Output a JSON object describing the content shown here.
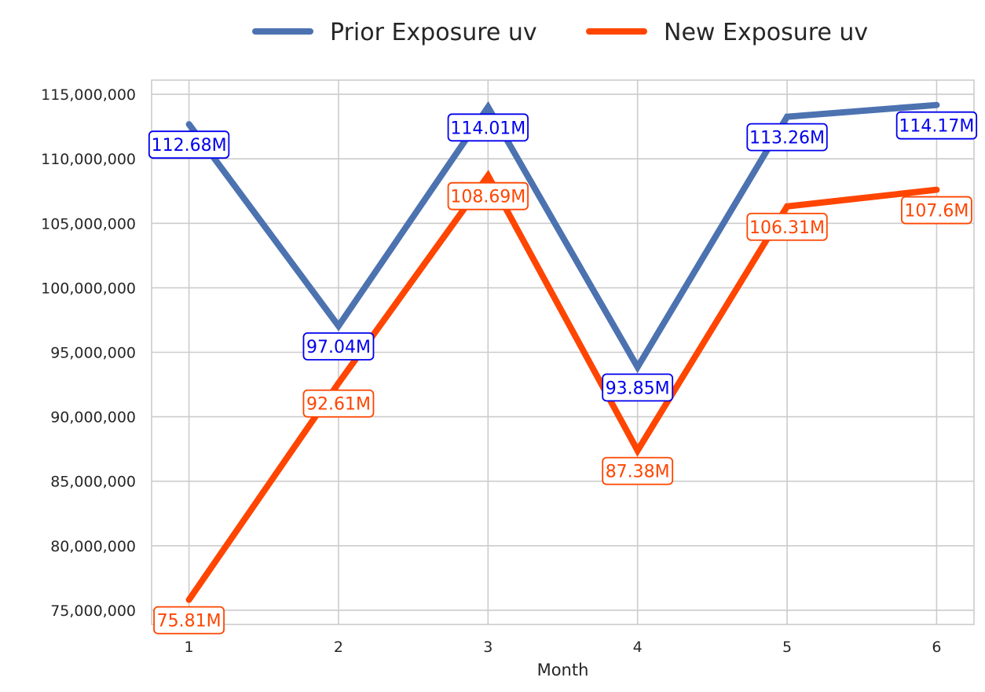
{
  "chart_data": {
    "type": "line",
    "title": "",
    "xlabel": "Month",
    "ylabel": "",
    "x": [
      1,
      2,
      3,
      4,
      5,
      6
    ],
    "xlim": [
      0.75,
      6.25
    ],
    "ylim": [
      73900000,
      116100000
    ],
    "yticks": [
      75000000,
      80000000,
      85000000,
      90000000,
      95000000,
      100000000,
      105000000,
      110000000,
      115000000
    ],
    "ytick_labels": [
      "75,000,000",
      "80,000,000",
      "85,000,000",
      "90,000,000",
      "95,000,000",
      "100,000,000",
      "105,000,000",
      "110,000,000",
      "115,000,000"
    ],
    "grid": true,
    "legend_position": "top-center",
    "series": [
      {
        "name": "Prior Exposure uv",
        "color": "#4c72b0",
        "label_color": "#0000ee",
        "values": [
          112680000,
          97040000,
          114010000,
          93850000,
          113260000,
          114170000
        ],
        "labels": [
          "112.68M",
          "97.04M",
          "114.01M",
          "93.85M",
          "113.26M",
          "114.17M"
        ]
      },
      {
        "name": "New Exposure uv",
        "color": "#ff4500",
        "label_color": "#ff4500",
        "values": [
          75810000,
          92610000,
          108690000,
          87380000,
          106310000,
          107600000
        ],
        "labels": [
          "75.81M",
          "92.61M",
          "108.69M",
          "87.38M",
          "106.31M",
          "107.6M"
        ]
      }
    ]
  }
}
